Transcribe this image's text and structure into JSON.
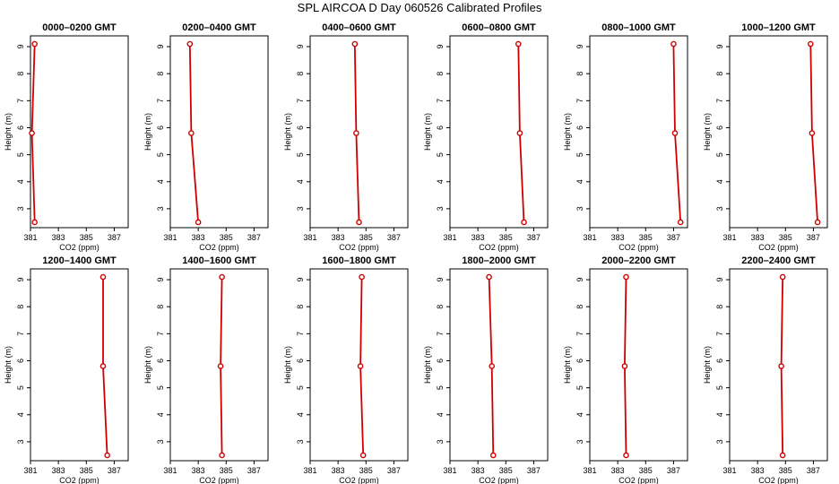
{
  "title": "SPL AIRCOA D  Day 060526  Calibrated Profiles",
  "chart_data": [
    {
      "type": "line",
      "title": "0000–0200 GMT",
      "xlabel": "CO2 (ppm)",
      "ylabel": "Height (m)",
      "xlim": [
        381,
        388
      ],
      "ylim": [
        2.3,
        9.4
      ],
      "xticks": [
        381,
        383,
        385,
        387
      ],
      "yticks": [
        3,
        4,
        5,
        6,
        7,
        8,
        9
      ],
      "color": "#d00000",
      "series": [
        {
          "points": [
            {
              "x": 381.3,
              "y": 9.1
            },
            {
              "x": 381.1,
              "y": 5.8
            },
            {
              "x": 381.3,
              "y": 2.5
            }
          ]
        }
      ]
    },
    {
      "type": "line",
      "title": "0200–0400 GMT",
      "xlabel": "CO2 (ppm)",
      "ylabel": "Height (m)",
      "xlim": [
        381,
        388
      ],
      "ylim": [
        2.3,
        9.4
      ],
      "xticks": [
        381,
        383,
        385,
        387
      ],
      "yticks": [
        3,
        4,
        5,
        6,
        7,
        8,
        9
      ],
      "color": "#d00000",
      "series": [
        {
          "points": [
            {
              "x": 382.4,
              "y": 9.1
            },
            {
              "x": 382.5,
              "y": 5.8
            },
            {
              "x": 383.0,
              "y": 2.5
            }
          ]
        }
      ]
    },
    {
      "type": "line",
      "title": "0400–0600 GMT",
      "xlabel": "CO2 (ppm)",
      "ylabel": "Height (m)",
      "xlim": [
        381,
        388
      ],
      "ylim": [
        2.3,
        9.4
      ],
      "xticks": [
        381,
        383,
        385,
        387
      ],
      "yticks": [
        3,
        4,
        5,
        6,
        7,
        8,
        9
      ],
      "color": "#d00000",
      "series": [
        {
          "points": [
            {
              "x": 384.2,
              "y": 9.1
            },
            {
              "x": 384.3,
              "y": 5.8
            },
            {
              "x": 384.5,
              "y": 2.5
            }
          ]
        }
      ]
    },
    {
      "type": "line",
      "title": "0600–0800 GMT",
      "xlabel": "CO2 (ppm)",
      "ylabel": "Height (m)",
      "xlim": [
        381,
        388
      ],
      "ylim": [
        2.3,
        9.4
      ],
      "xticks": [
        381,
        383,
        385,
        387
      ],
      "yticks": [
        3,
        4,
        5,
        6,
        7,
        8,
        9
      ],
      "color": "#d00000",
      "series": [
        {
          "points": [
            {
              "x": 385.9,
              "y": 9.1
            },
            {
              "x": 386.0,
              "y": 5.8
            },
            {
              "x": 386.3,
              "y": 2.5
            }
          ]
        }
      ]
    },
    {
      "type": "line",
      "title": "0800–1000 GMT",
      "xlabel": "CO2 (ppm)",
      "ylabel": "Height (m)",
      "xlim": [
        381,
        388
      ],
      "ylim": [
        2.3,
        9.4
      ],
      "xticks": [
        381,
        383,
        385,
        387
      ],
      "yticks": [
        3,
        4,
        5,
        6,
        7,
        8,
        9
      ],
      "color": "#d00000",
      "series": [
        {
          "points": [
            {
              "x": 387.0,
              "y": 9.1
            },
            {
              "x": 387.1,
              "y": 5.8
            },
            {
              "x": 387.5,
              "y": 2.5
            }
          ]
        }
      ]
    },
    {
      "type": "line",
      "title": "1000–1200 GMT",
      "xlabel": "CO2 (ppm)",
      "ylabel": "Height (m)",
      "xlim": [
        381,
        388
      ],
      "ylim": [
        2.3,
        9.4
      ],
      "xticks": [
        381,
        383,
        385,
        387
      ],
      "yticks": [
        3,
        4,
        5,
        6,
        7,
        8,
        9
      ],
      "color": "#d00000",
      "series": [
        {
          "points": [
            {
              "x": 386.8,
              "y": 9.1
            },
            {
              "x": 386.9,
              "y": 5.8
            },
            {
              "x": 387.3,
              "y": 2.5
            }
          ]
        }
      ]
    },
    {
      "type": "line",
      "title": "1200–1400 GMT",
      "xlabel": "CO2 (ppm)",
      "ylabel": "Height (m)",
      "xlim": [
        381,
        388
      ],
      "ylim": [
        2.3,
        9.4
      ],
      "xticks": [
        381,
        383,
        385,
        387
      ],
      "yticks": [
        3,
        4,
        5,
        6,
        7,
        8,
        9
      ],
      "color": "#d00000",
      "series": [
        {
          "points": [
            {
              "x": 386.2,
              "y": 9.1
            },
            {
              "x": 386.2,
              "y": 5.8
            },
            {
              "x": 386.5,
              "y": 2.5
            }
          ]
        }
      ]
    },
    {
      "type": "line",
      "title": "1400–1600 GMT",
      "xlabel": "CO2 (ppm)",
      "ylabel": "Height (m)",
      "xlim": [
        381,
        388
      ],
      "ylim": [
        2.3,
        9.4
      ],
      "xticks": [
        381,
        383,
        385,
        387
      ],
      "yticks": [
        3,
        4,
        5,
        6,
        7,
        8,
        9
      ],
      "color": "#d00000",
      "series": [
        {
          "points": [
            {
              "x": 384.7,
              "y": 9.1
            },
            {
              "x": 384.6,
              "y": 5.8
            },
            {
              "x": 384.7,
              "y": 2.5
            }
          ]
        }
      ]
    },
    {
      "type": "line",
      "title": "1600–1800 GMT",
      "xlabel": "CO2 (ppm)",
      "ylabel": "Height (m)",
      "xlim": [
        381,
        388
      ],
      "ylim": [
        2.3,
        9.4
      ],
      "xticks": [
        381,
        383,
        385,
        387
      ],
      "yticks": [
        3,
        4,
        5,
        6,
        7,
        8,
        9
      ],
      "color": "#d00000",
      "series": [
        {
          "points": [
            {
              "x": 384.7,
              "y": 9.1
            },
            {
              "x": 384.6,
              "y": 5.8
            },
            {
              "x": 384.8,
              "y": 2.5
            }
          ]
        }
      ]
    },
    {
      "type": "line",
      "title": "1800–2000 GMT",
      "xlabel": "CO2 (ppm)",
      "ylabel": "Height (m)",
      "xlim": [
        381,
        388
      ],
      "ylim": [
        2.3,
        9.4
      ],
      "xticks": [
        381,
        383,
        385,
        387
      ],
      "yticks": [
        3,
        4,
        5,
        6,
        7,
        8,
        9
      ],
      "color": "#d00000",
      "series": [
        {
          "points": [
            {
              "x": 383.8,
              "y": 9.1
            },
            {
              "x": 384.0,
              "y": 5.8
            },
            {
              "x": 384.1,
              "y": 2.5
            }
          ]
        }
      ]
    },
    {
      "type": "line",
      "title": "2000–2200 GMT",
      "xlabel": "CO2 (ppm)",
      "ylabel": "Height (m)",
      "xlim": [
        381,
        388
      ],
      "ylim": [
        2.3,
        9.4
      ],
      "xticks": [
        381,
        383,
        385,
        387
      ],
      "yticks": [
        3,
        4,
        5,
        6,
        7,
        8,
        9
      ],
      "color": "#d00000",
      "series": [
        {
          "points": [
            {
              "x": 383.6,
              "y": 9.1
            },
            {
              "x": 383.5,
              "y": 5.8
            },
            {
              "x": 383.6,
              "y": 2.5
            }
          ]
        }
      ]
    },
    {
      "type": "line",
      "title": "2200–2400 GMT",
      "xlabel": "CO2 (ppm)",
      "ylabel": "Height (m)",
      "xlim": [
        381,
        388
      ],
      "ylim": [
        2.3,
        9.4
      ],
      "xticks": [
        381,
        383,
        385,
        387
      ],
      "yticks": [
        3,
        4,
        5,
        6,
        7,
        8,
        9
      ],
      "color": "#d00000",
      "series": [
        {
          "points": [
            {
              "x": 384.8,
              "y": 9.1
            },
            {
              "x": 384.7,
              "y": 5.8
            },
            {
              "x": 384.8,
              "y": 2.5
            }
          ]
        }
      ]
    }
  ]
}
